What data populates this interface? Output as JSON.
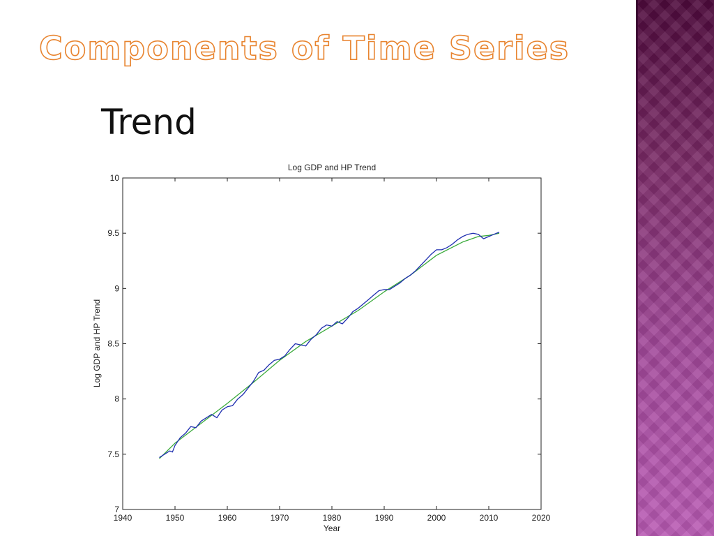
{
  "slide": {
    "title": "Components of Time Series",
    "subtitle": "Trend"
  },
  "theme": {
    "title_outline_color": "#e8842f",
    "panel_color_top": "#4e0a3c",
    "panel_color_bottom": "#b95ab4",
    "gdp_color": "#1f2fb0",
    "trend_color": "#3cab3c"
  },
  "chart_data": {
    "type": "line",
    "title": "Log GDP and HP Trend",
    "xlabel": "Year",
    "ylabel": "Log GDP and HP Trend",
    "xlim": [
      1940,
      2020
    ],
    "ylim": [
      7,
      10
    ],
    "xticks": [
      1940,
      1950,
      1960,
      1970,
      1980,
      1990,
      2000,
      2010,
      2020
    ],
    "yticks": [
      7,
      7.5,
      8,
      8.5,
      9,
      9.5,
      10
    ],
    "grid": false,
    "series": [
      {
        "key": "gdp",
        "color": "#1f2fb0",
        "x": [
          1947,
          1948,
          1949,
          1949.5,
          1950,
          1951,
          1952,
          1953,
          1954,
          1955,
          1956,
          1957,
          1958,
          1959,
          1960,
          1961,
          1962,
          1963,
          1964,
          1965,
          1966,
          1967,
          1968,
          1969,
          1970,
          1971,
          1972,
          1973,
          1974,
          1975,
          1976,
          1977,
          1978,
          1979,
          1980,
          1981,
          1982,
          1983,
          1984,
          1985,
          1986,
          1987,
          1988,
          1989,
          1990,
          1991,
          1992,
          1993,
          1994,
          1995,
          1996,
          1997,
          1998,
          1999,
          2000,
          2001,
          2002,
          2003,
          2004,
          2005,
          2006,
          2007,
          2008,
          2009,
          2010,
          2011,
          2012
        ],
        "y": [
          7.47,
          7.5,
          7.53,
          7.52,
          7.58,
          7.65,
          7.69,
          7.75,
          7.74,
          7.8,
          7.83,
          7.86,
          7.83,
          7.9,
          7.93,
          7.94,
          8.0,
          8.04,
          8.1,
          8.16,
          8.24,
          8.26,
          8.31,
          8.35,
          8.36,
          8.39,
          8.45,
          8.5,
          8.49,
          8.48,
          8.54,
          8.58,
          8.64,
          8.67,
          8.66,
          8.7,
          8.68,
          8.73,
          8.79,
          8.82,
          8.86,
          8.9,
          8.94,
          8.98,
          8.99,
          8.99,
          9.02,
          9.05,
          9.09,
          9.12,
          9.16,
          9.21,
          9.26,
          9.31,
          9.35,
          9.35,
          9.37,
          9.4,
          9.44,
          9.47,
          9.49,
          9.5,
          9.49,
          9.45,
          9.47,
          9.49,
          9.51
        ]
      },
      {
        "key": "trend",
        "color": "#3cab3c",
        "x": [
          1947,
          1950,
          1955,
          1960,
          1965,
          1970,
          1975,
          1980,
          1985,
          1990,
          1995,
          2000,
          2005,
          2008,
          2010,
          2012
        ],
        "y": [
          7.46,
          7.6,
          7.78,
          7.96,
          8.15,
          8.35,
          8.52,
          8.66,
          8.8,
          8.97,
          9.12,
          9.3,
          9.42,
          9.47,
          9.48,
          9.5
        ]
      }
    ]
  }
}
